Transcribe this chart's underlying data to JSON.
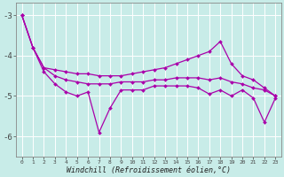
{
  "xlabel": "Windchill (Refroidissement éolien,°C)",
  "background_color": "#c8ece8",
  "line_color": "#aa00aa",
  "xlim": [
    -0.5,
    23.5
  ],
  "ylim": [
    -6.5,
    -2.7
  ],
  "yticks": [
    -6,
    -5,
    -4,
    -3
  ],
  "x": [
    0,
    1,
    2,
    3,
    4,
    5,
    6,
    7,
    8,
    9,
    10,
    11,
    12,
    13,
    14,
    15,
    16,
    17,
    18,
    19,
    20,
    21,
    22,
    23
  ],
  "line1": [
    -3.0,
    -3.8,
    -4.3,
    -4.35,
    -4.4,
    -4.45,
    -4.45,
    -4.5,
    -4.5,
    -4.5,
    -4.45,
    -4.4,
    -4.35,
    -4.3,
    -4.2,
    -4.1,
    -4.0,
    -3.9,
    -3.65,
    -4.2,
    -4.5,
    -4.6,
    -4.8,
    -5.0
  ],
  "line2": [
    -3.0,
    -3.8,
    -4.3,
    -4.5,
    -4.6,
    -4.65,
    -4.7,
    -4.7,
    -4.7,
    -4.65,
    -4.65,
    -4.65,
    -4.6,
    -4.6,
    -4.55,
    -4.55,
    -4.55,
    -4.6,
    -4.55,
    -4.65,
    -4.7,
    -4.8,
    -4.85,
    -5.0
  ],
  "line3": [
    -3.0,
    -3.8,
    -4.4,
    -4.7,
    -4.9,
    -5.0,
    -4.9,
    -5.9,
    -5.3,
    -4.85,
    -4.85,
    -4.85,
    -4.75,
    -4.75,
    -4.75,
    -4.75,
    -4.8,
    -4.95,
    -4.85,
    -5.0,
    -4.85,
    -5.05,
    -5.65,
    -5.05
  ]
}
